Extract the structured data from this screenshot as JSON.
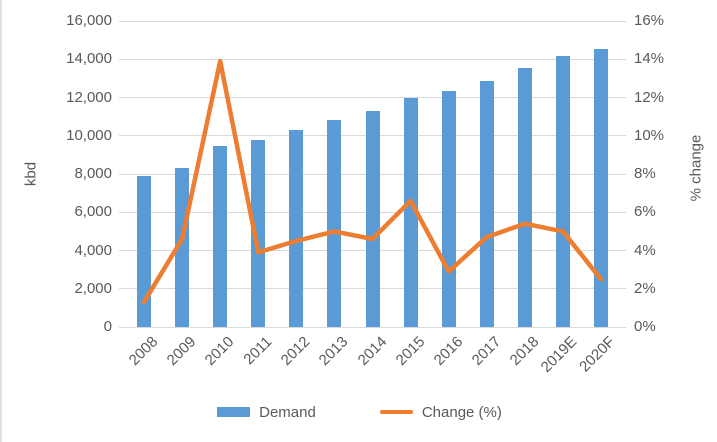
{
  "chart_data": {
    "type": "combo",
    "categories": [
      "2008",
      "2009",
      "2010",
      "2011",
      "2012",
      "2013",
      "2014",
      "2015",
      "2016",
      "2017",
      "2018",
      "2019E",
      "2020F"
    ],
    "series": [
      {
        "name": "Demand",
        "type": "bar",
        "axis": "left",
        "values": [
          7900,
          8300,
          9450,
          9800,
          10300,
          10800,
          11300,
          12000,
          12350,
          12850,
          13550,
          14150,
          14550
        ]
      },
      {
        "name": "Change (%)",
        "type": "line",
        "axis": "right",
        "values": [
          1.3,
          4.6,
          13.9,
          3.9,
          4.5,
          5.0,
          4.6,
          6.6,
          2.9,
          4.7,
          5.4,
          5.0,
          2.5
        ]
      }
    ],
    "title": "",
    "xlabel": "",
    "ylabel_left": "kbd",
    "ylabel_right": "% change",
    "y_left_ticks": [
      "0",
      "2,000",
      "4,000",
      "6,000",
      "8,000",
      "10,000",
      "12,000",
      "14,000",
      "16,000"
    ],
    "y_right_ticks": [
      "0%",
      "2%",
      "4%",
      "6%",
      "8%",
      "10%",
      "12%",
      "14%",
      "16%"
    ],
    "ylim_left": [
      0,
      16000
    ],
    "ylim_right_pct": [
      0,
      16
    ],
    "grid": "horizontal",
    "legend_position": "bottom",
    "x_tick_rotation_deg": 45
  },
  "legend": {
    "demand_label": "Demand",
    "change_label": "Change (%)"
  },
  "colors": {
    "bar": "#5B9BD5",
    "line": "#ED7D31",
    "grid": "#D9D9D9",
    "axis_text": "#595959"
  }
}
